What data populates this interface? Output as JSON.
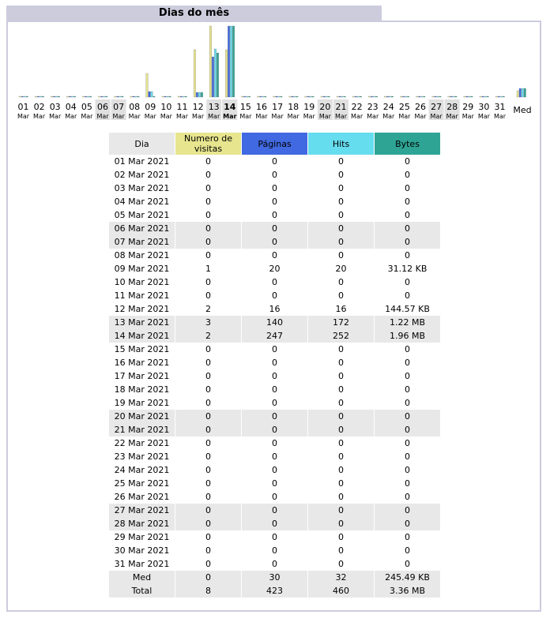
{
  "title": "Dias do mês",
  "colors": {
    "visits": "#e7e58e",
    "pages": "#4169e1",
    "hits": "#66ddee",
    "bytes": "#2ea495",
    "header_day_bg": "#e8e8e8",
    "frame": "#ccccdd"
  },
  "chart_data": {
    "type": "bar",
    "categories": [
      "01",
      "02",
      "03",
      "04",
      "05",
      "06",
      "07",
      "08",
      "09",
      "10",
      "11",
      "12",
      "13",
      "14",
      "15",
      "16",
      "17",
      "18",
      "19",
      "20",
      "21",
      "22",
      "23",
      "24",
      "25",
      "26",
      "27",
      "28",
      "29",
      "30",
      "31"
    ],
    "month_label": "Mar",
    "weekend_days": [
      "06",
      "07",
      "13",
      "14",
      "20",
      "21",
      "27",
      "28"
    ],
    "highlight_day": "14",
    "average_label": "Med",
    "series": [
      {
        "name": "Numero de visitas",
        "values": [
          0,
          0,
          0,
          0,
          0,
          0,
          0,
          0,
          1,
          0,
          0,
          2,
          3,
          2,
          0,
          0,
          0,
          0,
          0,
          0,
          0,
          0,
          0,
          0,
          0,
          0,
          0,
          0,
          0,
          0,
          0
        ],
        "average": 0.26
      },
      {
        "name": "Páginas",
        "values": [
          0,
          0,
          0,
          0,
          0,
          0,
          0,
          0,
          20,
          0,
          0,
          16,
          140,
          247,
          0,
          0,
          0,
          0,
          0,
          0,
          0,
          0,
          0,
          0,
          0,
          0,
          0,
          0,
          0,
          0,
          0
        ],
        "average": 30
      },
      {
        "name": "Hits",
        "values": [
          0,
          0,
          0,
          0,
          0,
          0,
          0,
          0,
          20,
          0,
          0,
          16,
          172,
          252,
          0,
          0,
          0,
          0,
          0,
          0,
          0,
          0,
          0,
          0,
          0,
          0,
          0,
          0,
          0,
          0,
          0
        ],
        "average": 32
      },
      {
        "name": "Bytes",
        "values": [
          0,
          0,
          0,
          0,
          0,
          0,
          0,
          0,
          31.12,
          0,
          0,
          144.57,
          1249,
          2007,
          0,
          0,
          0,
          0,
          0,
          0,
          0,
          0,
          0,
          0,
          0,
          0,
          0,
          0,
          0,
          0,
          0
        ],
        "unit": "KB",
        "average": 245.49
      }
    ]
  },
  "table": {
    "headers": [
      "Dia",
      "Numero de visitas",
      "Páginas",
      "Hits",
      "Bytes"
    ],
    "rows": [
      [
        "01 Mar 2021",
        "0",
        "0",
        "0",
        "0"
      ],
      [
        "02 Mar 2021",
        "0",
        "0",
        "0",
        "0"
      ],
      [
        "03 Mar 2021",
        "0",
        "0",
        "0",
        "0"
      ],
      [
        "04 Mar 2021",
        "0",
        "0",
        "0",
        "0"
      ],
      [
        "05 Mar 2021",
        "0",
        "0",
        "0",
        "0"
      ],
      [
        "06 Mar 2021",
        "0",
        "0",
        "0",
        "0"
      ],
      [
        "07 Mar 2021",
        "0",
        "0",
        "0",
        "0"
      ],
      [
        "08 Mar 2021",
        "0",
        "0",
        "0",
        "0"
      ],
      [
        "09 Mar 2021",
        "1",
        "20",
        "20",
        "31.12 KB"
      ],
      [
        "10 Mar 2021",
        "0",
        "0",
        "0",
        "0"
      ],
      [
        "11 Mar 2021",
        "0",
        "0",
        "0",
        "0"
      ],
      [
        "12 Mar 2021",
        "2",
        "16",
        "16",
        "144.57 KB"
      ],
      [
        "13 Mar 2021",
        "3",
        "140",
        "172",
        "1.22 MB"
      ],
      [
        "14 Mar 2021",
        "2",
        "247",
        "252",
        "1.96 MB"
      ],
      [
        "15 Mar 2021",
        "0",
        "0",
        "0",
        "0"
      ],
      [
        "16 Mar 2021",
        "0",
        "0",
        "0",
        "0"
      ],
      [
        "17 Mar 2021",
        "0",
        "0",
        "0",
        "0"
      ],
      [
        "18 Mar 2021",
        "0",
        "0",
        "0",
        "0"
      ],
      [
        "19 Mar 2021",
        "0",
        "0",
        "0",
        "0"
      ],
      [
        "20 Mar 2021",
        "0",
        "0",
        "0",
        "0"
      ],
      [
        "21 Mar 2021",
        "0",
        "0",
        "0",
        "0"
      ],
      [
        "22 Mar 2021",
        "0",
        "0",
        "0",
        "0"
      ],
      [
        "23 Mar 2021",
        "0",
        "0",
        "0",
        "0"
      ],
      [
        "24 Mar 2021",
        "0",
        "0",
        "0",
        "0"
      ],
      [
        "25 Mar 2021",
        "0",
        "0",
        "0",
        "0"
      ],
      [
        "26 Mar 2021",
        "0",
        "0",
        "0",
        "0"
      ],
      [
        "27 Mar 2021",
        "0",
        "0",
        "0",
        "0"
      ],
      [
        "28 Mar 2021",
        "0",
        "0",
        "0",
        "0"
      ],
      [
        "29 Mar 2021",
        "0",
        "0",
        "0",
        "0"
      ],
      [
        "30 Mar 2021",
        "0",
        "0",
        "0",
        "0"
      ],
      [
        "31 Mar 2021",
        "0",
        "0",
        "0",
        "0"
      ]
    ],
    "weekend_rows": [
      5,
      6,
      12,
      13,
      19,
      20,
      26,
      27
    ],
    "bold_row": 13,
    "footer": [
      [
        "Med",
        "0",
        "30",
        "32",
        "245.49 KB"
      ],
      [
        "Total",
        "8",
        "423",
        "460",
        "3.36 MB"
      ]
    ]
  }
}
